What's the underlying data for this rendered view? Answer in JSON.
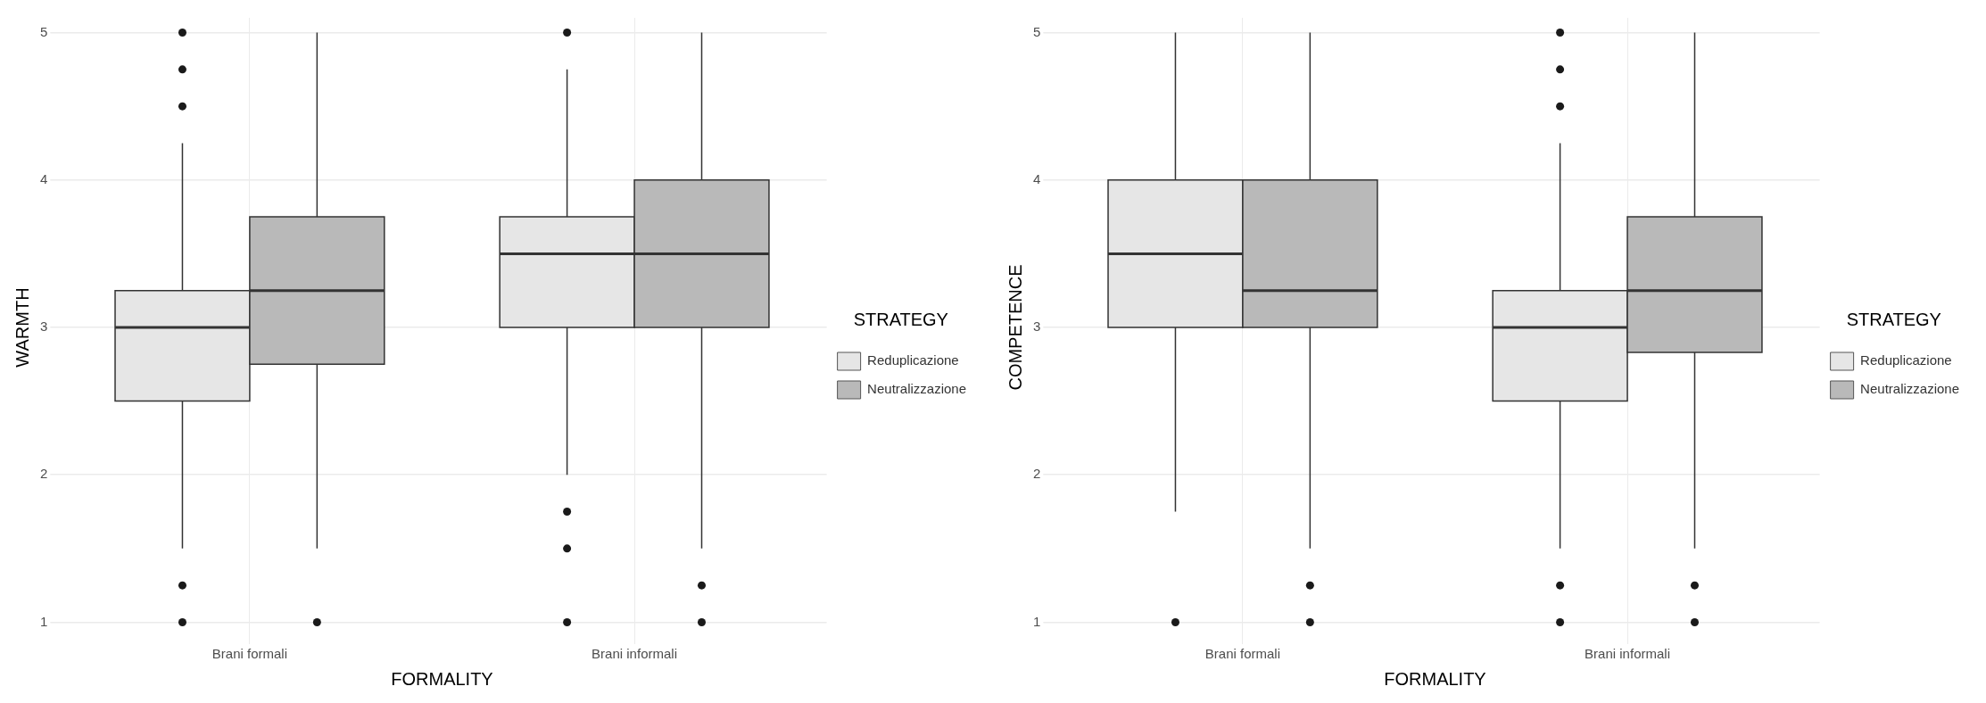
{
  "chart_data": [
    {
      "type": "box",
      "xlabel": "FORMALITY",
      "ylabel": "WARMTH",
      "legend_title": "STRATEGY",
      "legend": "right",
      "grid": true,
      "categories": [
        "Brani formali",
        "Brani informali"
      ],
      "ylim": [
        0.9,
        5.1
      ],
      "yticks": [
        1,
        2,
        3,
        4,
        5
      ],
      "series": [
        {
          "name": "Reduplicazione",
          "color": "#e6e6e6",
          "boxes": [
            {
              "low": 1.5,
              "q1": 2.5,
              "median": 3,
              "q3": 3.25,
              "high": 4.25,
              "outliers": [
                5,
                4.75,
                4.5,
                1.25,
                1
              ]
            },
            {
              "low": 2,
              "q1": 3,
              "median": 3.5,
              "q3": 3.75,
              "high": 4.75,
              "outliers": [
                5,
                1.75,
                1.5,
                1
              ]
            }
          ]
        },
        {
          "name": "Neutralizzazione",
          "color": "#b9b9b9",
          "boxes": [
            {
              "low": 1.5,
              "q1": 2.75,
              "median": 3.25,
              "q3": 3.75,
              "high": 5,
              "outliers": [
                1
              ]
            },
            {
              "low": 1.5,
              "q1": 3,
              "median": 3.5,
              "q3": 4,
              "high": 5,
              "outliers": [
                1.25,
                1
              ]
            }
          ]
        }
      ]
    },
    {
      "type": "box",
      "xlabel": "FORMALITY",
      "ylabel": "COMPETENCE",
      "legend_title": "STRATEGY",
      "legend": "right",
      "grid": true,
      "categories": [
        "Brani formali",
        "Brani informali"
      ],
      "ylim": [
        0.9,
        5.1
      ],
      "yticks": [
        1,
        2,
        3,
        4,
        5
      ],
      "series": [
        {
          "name": "Reduplicazione",
          "color": "#e6e6e6",
          "boxes": [
            {
              "low": 1.75,
              "q1": 3,
              "median": 3.5,
              "q3": 4,
              "high": 5,
              "outliers": [
                1
              ]
            },
            {
              "low": 1.5,
              "q1": 2.5,
              "median": 3,
              "q3": 3.25,
              "high": 4.25,
              "outliers": [
                5,
                4.75,
                4.5,
                1.25,
                1
              ]
            }
          ]
        },
        {
          "name": "Neutralizzazione",
          "color": "#b9b9b9",
          "boxes": [
            {
              "low": 1.5,
              "q1": 3,
              "median": 3.25,
              "q3": 4,
              "high": 5,
              "outliers": [
                1.25,
                1
              ]
            },
            {
              "low": 1.5,
              "q1": 2.83,
              "median": 3.25,
              "q3": 3.75,
              "high": 5,
              "outliers": [
                1.25,
                1
              ]
            }
          ]
        }
      ]
    }
  ]
}
